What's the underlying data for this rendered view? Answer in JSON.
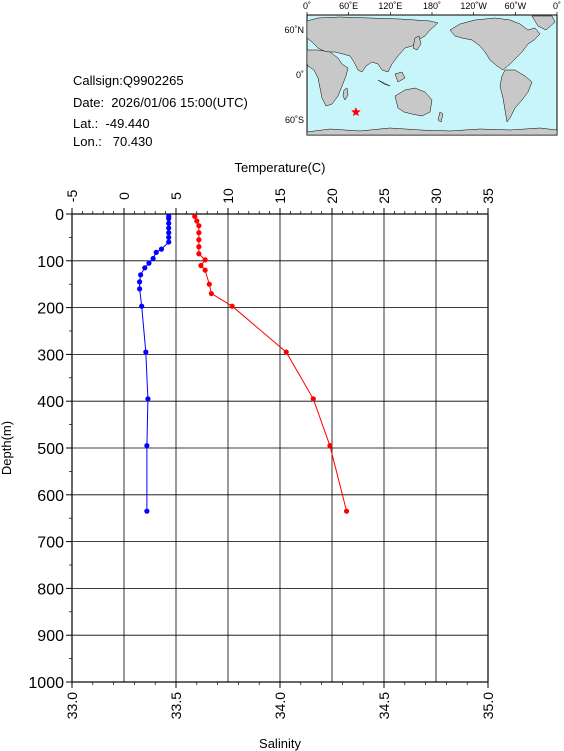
{
  "header": {
    "callsign": "Callsign:Q9902265",
    "date": "Date:  2026/01/06 15:00(UTC)",
    "lat": "Lat.:  -49.440",
    "lon": "Lon.:   70.430"
  },
  "map": {
    "top_labels": [
      "0˚",
      "60˚E",
      "120˚E",
      "180˚",
      "120˚W",
      "60˚W",
      "0˚"
    ],
    "lat_labels": [
      "60˚N",
      "0˚",
      "60˚S"
    ],
    "ocean_color": "#c8f5fa",
    "land_color": "#c8c8c8",
    "marker_color": "#ff0000",
    "marker_icon": "star-icon",
    "marker_lon": 70.43,
    "marker_lat": -49.44
  },
  "chart_data": {
    "type": "line",
    "title": "",
    "top_axis_label": "Temperature(C)",
    "bottom_axis_label": "Salinity",
    "left_axis_label": "Depth(m)",
    "temperature_range": [
      -5,
      35
    ],
    "temperature_ticks": [
      "-5",
      "0",
      "5",
      "10",
      "15",
      "20",
      "25",
      "30",
      "35"
    ],
    "salinity_range": [
      33.0,
      35.0
    ],
    "salinity_ticks": [
      "33.0",
      "33.5",
      "34.0",
      "34.5",
      "35.0"
    ],
    "depth_range": [
      0,
      1000
    ],
    "depth_ticks": [
      "0",
      "100",
      "200",
      "300",
      "400",
      "500",
      "600",
      "700",
      "800",
      "900",
      "1000"
    ],
    "grid": true,
    "series": [
      {
        "quantity": "temperature",
        "color": "#0000ff",
        "points": [
          [
            4.3,
            5
          ],
          [
            4.3,
            10
          ],
          [
            4.3,
            20
          ],
          [
            4.3,
            30
          ],
          [
            4.3,
            40
          ],
          [
            4.3,
            50
          ],
          [
            4.3,
            60
          ],
          [
            3.6,
            75
          ],
          [
            3.1,
            82
          ],
          [
            2.8,
            95
          ],
          [
            2.4,
            105
          ],
          [
            2.0,
            115
          ],
          [
            1.6,
            130
          ],
          [
            1.5,
            145
          ],
          [
            1.5,
            160
          ],
          [
            1.7,
            197
          ],
          [
            2.1,
            295
          ],
          [
            2.3,
            395
          ],
          [
            2.2,
            495
          ],
          [
            2.2,
            635
          ]
        ]
      },
      {
        "quantity": "salinity",
        "color": "#ff0000",
        "points": [
          [
            33.59,
            5
          ],
          [
            33.6,
            15
          ],
          [
            33.61,
            25
          ],
          [
            33.61,
            40
          ],
          [
            33.61,
            55
          ],
          [
            33.61,
            70
          ],
          [
            33.61,
            85
          ],
          [
            33.64,
            98
          ],
          [
            33.62,
            110
          ],
          [
            33.64,
            120
          ],
          [
            33.66,
            150
          ],
          [
            33.67,
            170
          ],
          [
            33.77,
            197
          ],
          [
            34.03,
            295
          ],
          [
            34.16,
            395
          ],
          [
            34.24,
            495
          ],
          [
            34.32,
            635
          ]
        ]
      }
    ]
  }
}
